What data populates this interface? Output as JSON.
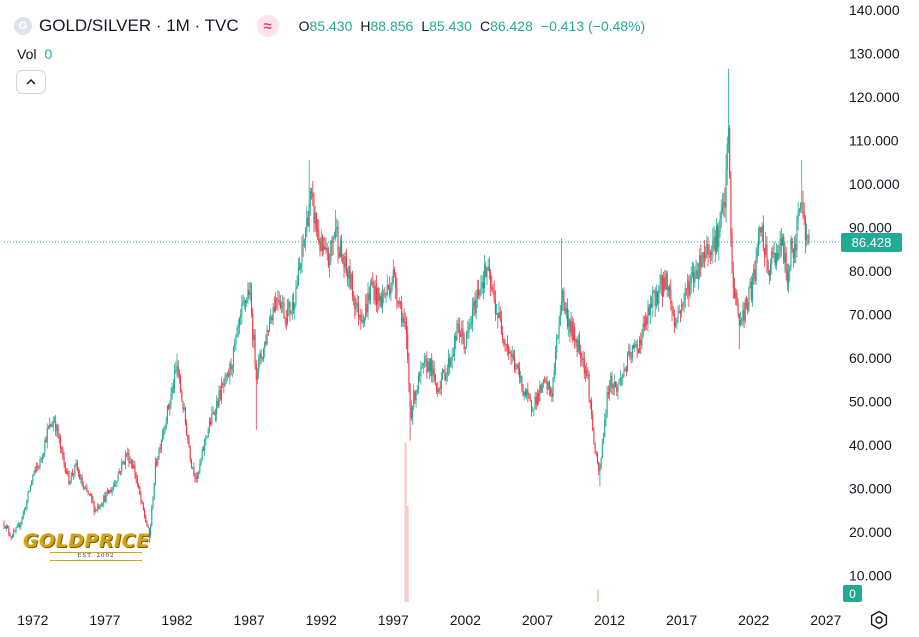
{
  "header": {
    "symbol_icon": "G",
    "title": "GOLD/SILVER · 1M · TVC",
    "indicator_icon": "≈",
    "open_label": "O",
    "open": "85.430",
    "high_label": "H",
    "high": "88.856",
    "low_label": "L",
    "low": "85.430",
    "close_label": "C",
    "close": "86.428",
    "change": "−0.413 (−0.48%)"
  },
  "volume": {
    "label": "Vol",
    "value": "0"
  },
  "price_tag": "86.428",
  "volume_tag": "0",
  "logo": {
    "text": "GOLDPRICE",
    "sub": "EST. 2002"
  },
  "icons": {
    "collapse": "chevron-up-icon",
    "settings": "gear-icon",
    "indicator": "wave-icon"
  },
  "colors": {
    "up": "#22ab94",
    "down": "#f23645",
    "accent": "#22ab94",
    "volume": "#f7c9c5"
  },
  "chart_data": {
    "type": "candlestick",
    "title": "GOLD/SILVER · 1M · TVC",
    "ylim": [
      0,
      140
    ],
    "xlim": [
      1970.0,
      2027.5
    ],
    "y_ticks": [
      "140.000",
      "130.000",
      "120.000",
      "110.000",
      "100.000",
      "90.000",
      "80.000",
      "70.000",
      "60.000",
      "50.000",
      "40.000",
      "30.000",
      "20.000",
      "10.000"
    ],
    "x_ticks": [
      "1972",
      "1977",
      "1982",
      "1987",
      "1992",
      "1997",
      "2002",
      "2007",
      "2012",
      "2017",
      "2022",
      "2027"
    ],
    "last_price": 86.428,
    "anchors": [
      [
        1970.0,
        22
      ],
      [
        1970.5,
        19
      ],
      [
        1971.0,
        21
      ],
      [
        1971.5,
        26
      ],
      [
        1972.0,
        33
      ],
      [
        1972.5,
        36
      ],
      [
        1973.0,
        43
      ],
      [
        1973.5,
        46
      ],
      [
        1974.0,
        38
      ],
      [
        1974.5,
        32
      ],
      [
        1975.0,
        35
      ],
      [
        1975.5,
        30
      ],
      [
        1976.0,
        28
      ],
      [
        1976.3,
        25
      ],
      [
        1977.0,
        28
      ],
      [
        1977.5,
        30
      ],
      [
        1978.0,
        34
      ],
      [
        1978.5,
        38
      ],
      [
        1979.0,
        35
      ],
      [
        1979.5,
        27
      ],
      [
        1980.1,
        19
      ],
      [
        1980.5,
        35
      ],
      [
        1981.0,
        43
      ],
      [
        1981.5,
        50
      ],
      [
        1982.0,
        58
      ],
      [
        1982.5,
        47
      ],
      [
        1983.0,
        36
      ],
      [
        1983.4,
        32
      ],
      [
        1984.0,
        42
      ],
      [
        1984.5,
        47
      ],
      [
        1985.0,
        52
      ],
      [
        1985.5,
        55
      ],
      [
        1986.0,
        62
      ],
      [
        1986.5,
        70
      ],
      [
        1987.0,
        76
      ],
      [
        1987.5,
        57
      ],
      [
        1988.0,
        62
      ],
      [
        1988.5,
        70
      ],
      [
        1989.0,
        75
      ],
      [
        1989.5,
        70
      ],
      [
        1990.0,
        72
      ],
      [
        1990.5,
        80
      ],
      [
        1991.0,
        91
      ],
      [
        1991.2,
        97
      ],
      [
        1991.5,
        93
      ],
      [
        1992.0,
        85
      ],
      [
        1992.5,
        82
      ],
      [
        1993.0,
        90
      ],
      [
        1993.5,
        82
      ],
      [
        1994.0,
        78
      ],
      [
        1994.5,
        71
      ],
      [
        1995.0,
        70
      ],
      [
        1995.5,
        77
      ],
      [
        1996.0,
        73
      ],
      [
        1996.5,
        75
      ],
      [
        1997.0,
        79
      ],
      [
        1997.5,
        72
      ],
      [
        1997.9,
        65
      ],
      [
        1998.2,
        47
      ],
      [
        1998.5,
        52
      ],
      [
        1999.0,
        57
      ],
      [
        1999.5,
        59
      ],
      [
        2000.0,
        53
      ],
      [
        2000.5,
        56
      ],
      [
        2001.0,
        60
      ],
      [
        2001.5,
        67
      ],
      [
        2002.0,
        63
      ],
      [
        2002.5,
        70
      ],
      [
        2003.0,
        77
      ],
      [
        2003.5,
        80
      ],
      [
        2004.0,
        73
      ],
      [
        2004.5,
        67
      ],
      [
        2005.0,
        62
      ],
      [
        2005.5,
        58
      ],
      [
        2006.0,
        53
      ],
      [
        2006.5,
        49
      ],
      [
        2007.0,
        51
      ],
      [
        2007.5,
        54
      ],
      [
        2008.0,
        52
      ],
      [
        2008.3,
        62
      ],
      [
        2008.7,
        75
      ],
      [
        2009.0,
        70
      ],
      [
        2009.5,
        65
      ],
      [
        2010.0,
        62
      ],
      [
        2010.5,
        55
      ],
      [
        2011.0,
        38
      ],
      [
        2011.3,
        33
      ],
      [
        2011.7,
        47
      ],
      [
        2012.0,
        55
      ],
      [
        2012.5,
        53
      ],
      [
        2013.0,
        57
      ],
      [
        2013.5,
        61
      ],
      [
        2014.0,
        63
      ],
      [
        2014.5,
        68
      ],
      [
        2015.0,
        73
      ],
      [
        2015.5,
        76
      ],
      [
        2016.0,
        78
      ],
      [
        2016.5,
        68
      ],
      [
        2017.0,
        72
      ],
      [
        2017.5,
        77
      ],
      [
        2018.0,
        80
      ],
      [
        2018.5,
        84
      ],
      [
        2019.0,
        86
      ],
      [
        2019.5,
        88
      ],
      [
        2020.0,
        96
      ],
      [
        2020.25,
        112
      ],
      [
        2020.5,
        78
      ],
      [
        2020.8,
        73
      ],
      [
        2021.0,
        68
      ],
      [
        2021.5,
        72
      ],
      [
        2022.0,
        78
      ],
      [
        2022.5,
        90
      ],
      [
        2023.0,
        80
      ],
      [
        2023.5,
        84
      ],
      [
        2024.0,
        86
      ],
      [
        2024.3,
        78
      ],
      [
        2024.6,
        85
      ],
      [
        2024.9,
        84
      ],
      [
        2025.1,
        96
      ],
      [
        2025.3,
        100
      ],
      [
        2025.5,
        90
      ],
      [
        2025.7,
        87
      ],
      [
        2025.85,
        86.4
      ]
    ],
    "spikes": [
      {
        "x": 1991.2,
        "high": 105.5
      },
      {
        "x": 1993.0,
        "high": 94
      },
      {
        "x": 1997.9,
        "low": 62
      },
      {
        "x": 1998.2,
        "low": 41
      },
      {
        "x": 2008.7,
        "high": 87.5
      },
      {
        "x": 2011.3,
        "low": 30.5
      },
      {
        "x": 2020.25,
        "high": 126.5
      },
      {
        "x": 2021.0,
        "low": 62
      },
      {
        "x": 2025.3,
        "high": 105.5
      },
      {
        "x": 1980.1,
        "low": 17.5
      },
      {
        "x": 1982.0,
        "high": 61
      },
      {
        "x": 1987.5,
        "low": 43.5
      }
    ],
    "volume_bars": [
      {
        "x": 1997.85,
        "value": 38
      },
      {
        "x": 1998.0,
        "value": 23
      },
      {
        "x": 2011.2,
        "value": 3
      }
    ]
  }
}
